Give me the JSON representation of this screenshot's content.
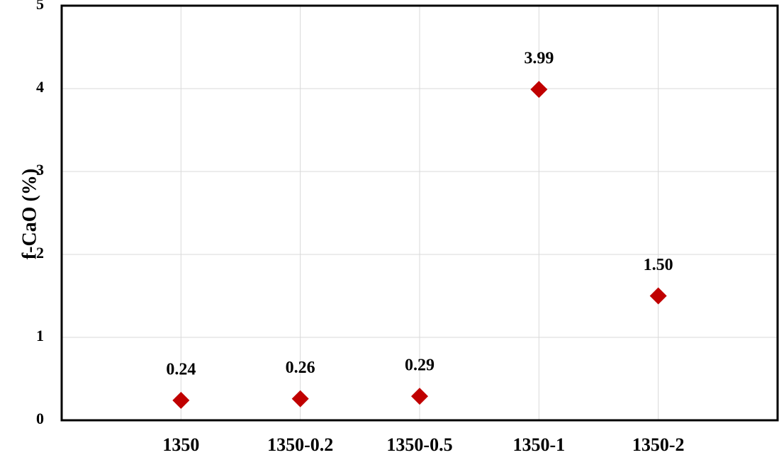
{
  "chart_data": {
    "type": "scatter",
    "y_label": "f-CaO (%)",
    "categories": [
      "1350",
      "1350-0.2",
      "1350-0.5",
      "1350-1",
      "1350-2"
    ],
    "values": [
      0.24,
      0.26,
      0.29,
      3.99,
      1.5
    ],
    "value_labels": [
      "0.24",
      "0.26",
      "0.29",
      "3.99",
      "1.50"
    ],
    "color": "#c00000",
    "marker": "diamond",
    "ylim": [
      0,
      5
    ],
    "yticks": [
      0,
      1,
      2,
      3,
      4,
      5
    ],
    "grid": true
  }
}
